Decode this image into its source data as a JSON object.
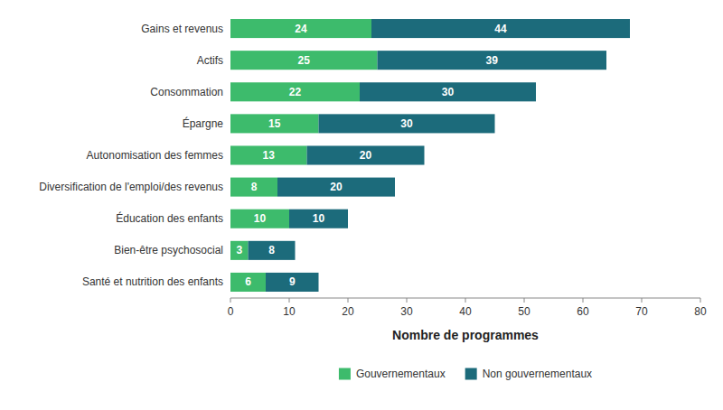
{
  "chart_data": {
    "type": "bar",
    "orientation": "horizontal",
    "stacked": true,
    "categories": [
      "Gains et revenus",
      "Actifs",
      "Consommation",
      "Épargne",
      "Autonomisation des femmes",
      "Diversification de l'emploi/des revenus",
      "Éducation des enfants",
      "Bien-être psychosocial",
      "Santé et nutrition des enfants"
    ],
    "series": [
      {
        "name": "Gouvernementaux",
        "color": "#3dbb6c",
        "values": [
          24,
          25,
          22,
          15,
          13,
          8,
          10,
          3,
          6
        ]
      },
      {
        "name": "Non gouvernementaux",
        "color": "#1c6b7b",
        "values": [
          44,
          39,
          30,
          30,
          20,
          20,
          10,
          8,
          9
        ]
      }
    ],
    "xlabel": "Nombre de programmes",
    "xlim": [
      0,
      80
    ],
    "xticks": [
      0,
      10,
      20,
      30,
      40,
      50,
      60,
      70,
      80
    ],
    "data_labels": true,
    "legend": "bottom",
    "grid": false
  }
}
